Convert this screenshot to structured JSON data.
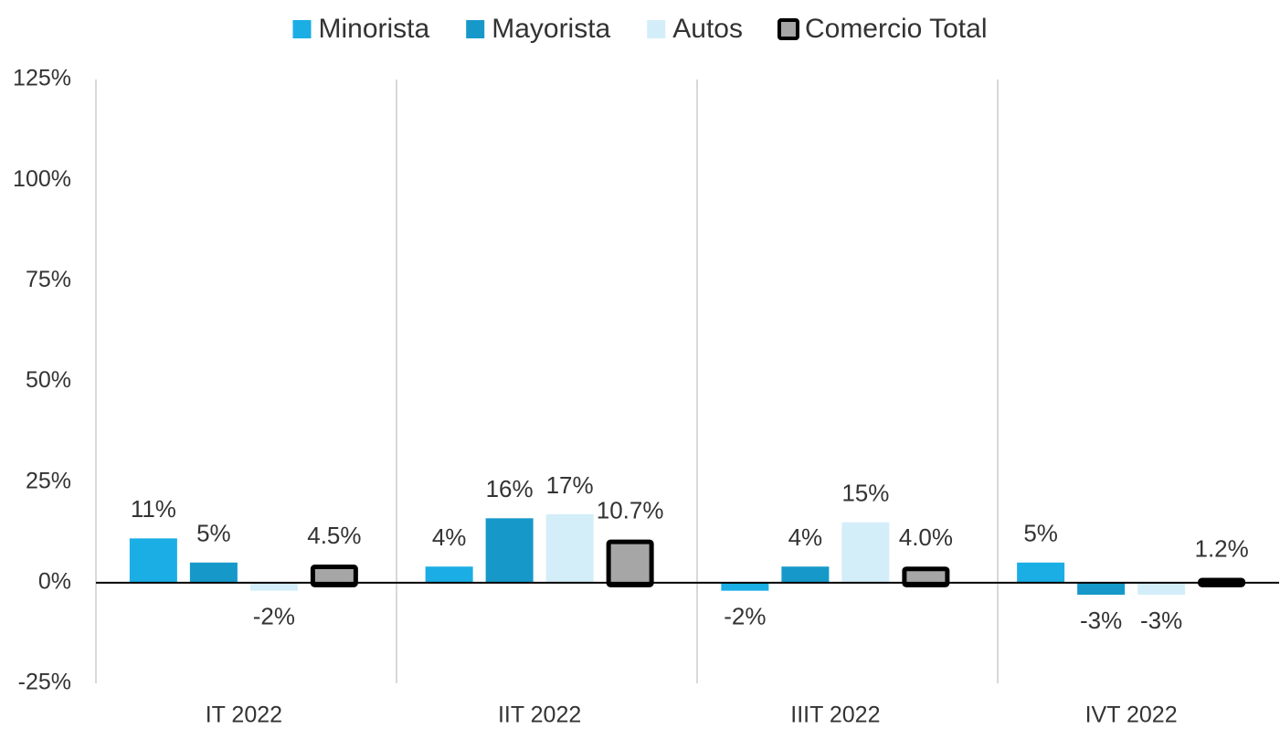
{
  "chart_data": {
    "type": "bar",
    "categories": [
      "IT 2022",
      "IIT 2022",
      "IIIT 2022",
      "IVT 2022"
    ],
    "series": [
      {
        "name": "Minorista",
        "color": "#1aaee5",
        "values": [
          11,
          4,
          -2,
          5
        ],
        "value_labels": [
          "11%",
          "4%",
          "-2%",
          "5%"
        ]
      },
      {
        "name": "Mayorista",
        "color": "#1699c9",
        "values": [
          5,
          16,
          4,
          -3
        ],
        "value_labels": [
          "5%",
          "16%",
          "4%",
          "-3%"
        ]
      },
      {
        "name": "Autos",
        "color": "#d4eef9",
        "values": [
          -2,
          17,
          15,
          -3
        ],
        "value_labels": [
          "-2%",
          "17%",
          "15%",
          "-3%"
        ]
      },
      {
        "name": "Comercio Total",
        "color": "#a6a6a6",
        "edge_color": "#000000",
        "values": [
          4.5,
          10.7,
          4.0,
          1.2
        ],
        "value_labels": [
          "4.5%",
          "10.7%",
          "4.0%",
          "1.2%"
        ]
      }
    ],
    "ylim": [
      -25,
      125
    ],
    "yticks": [
      {
        "value": -25,
        "label": "-25%"
      },
      {
        "value": 0,
        "label": "0%"
      },
      {
        "value": 25,
        "label": "25%"
      },
      {
        "value": 50,
        "label": "50%"
      },
      {
        "value": 75,
        "label": "75%"
      },
      {
        "value": 100,
        "label": "100%"
      },
      {
        "value": 125,
        "label": "125%"
      }
    ],
    "legend": "top"
  }
}
